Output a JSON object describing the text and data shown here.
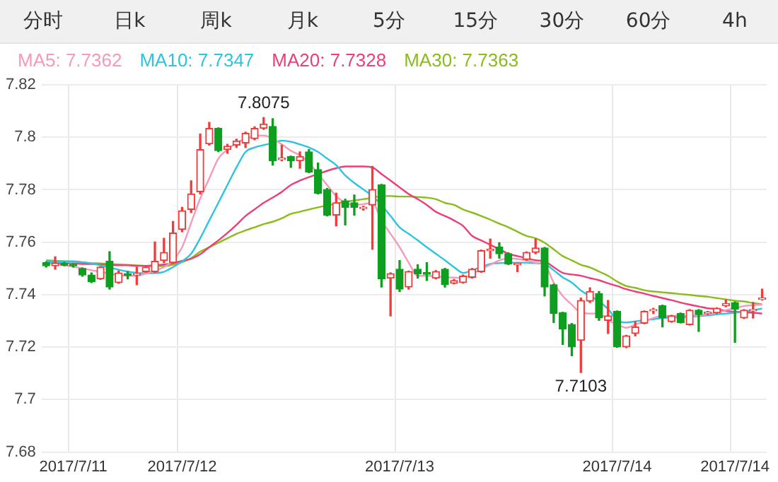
{
  "chart_data": {
    "type": "candlestick",
    "annotations": [
      "分时",
      "日k",
      "周k",
      "月k",
      "5分",
      "15分",
      "30分",
      "60分",
      "4h",
      {
        "text": "7.8075",
        "y": 7.8075
      },
      {
        "text": "7.7103",
        "y": 7.7103
      }
    ],
    "categories": [
      null,
      null,
      null,
      "2017/7/11",
      null,
      null,
      null,
      null,
      null,
      null,
      null,
      null,
      null,
      null,
      null,
      "2017/7/12",
      null,
      null,
      null,
      null,
      null,
      null,
      null,
      null,
      null,
      null,
      null,
      null,
      null,
      null,
      null,
      null,
      null,
      null,
      null,
      null,
      null,
      null,
      null,
      "2017/7/13",
      null,
      null,
      null,
      null,
      null,
      null,
      null,
      null,
      null,
      null,
      null,
      null,
      null,
      null,
      null,
      null,
      null,
      null,
      null,
      null,
      null,
      null,
      null,
      "2017/7/14",
      null,
      null,
      null,
      null,
      null,
      null,
      null,
      null,
      null,
      null,
      null,
      null,
      "2017/7/14",
      null,
      null,
      null
    ],
    "ohlc": [
      [
        7.7522,
        7.7525,
        7.7505,
        7.751
      ],
      [
        7.751,
        7.7544,
        7.7497,
        7.752
      ],
      [
        7.752,
        7.7523,
        7.751,
        7.7512
      ],
      [
        7.7515,
        7.7518,
        7.7505,
        7.751
      ],
      [
        7.75,
        7.7502,
        7.747,
        7.7475
      ],
      [
        7.7475,
        7.7483,
        7.7446,
        7.7449
      ],
      [
        7.746,
        7.7507,
        7.7458,
        7.7505
      ],
      [
        7.7527,
        7.7564,
        7.7421,
        7.7429
      ],
      [
        7.7446,
        7.749,
        7.7443,
        7.7483
      ],
      [
        7.748,
        7.7488,
        7.746,
        7.7473
      ],
      [
        7.7475,
        7.7505,
        7.7438,
        7.7478
      ],
      [
        7.7488,
        7.751,
        7.7485,
        7.7505
      ],
      [
        7.7488,
        7.7601,
        7.7485,
        7.7527
      ],
      [
        7.753,
        7.7615,
        7.7522,
        7.7561
      ],
      [
        7.7522,
        7.7679,
        7.752,
        7.7635
      ],
      [
        7.7649,
        7.7733,
        7.764,
        7.772
      ],
      [
        7.7725,
        7.7834,
        7.7713,
        7.7784
      ],
      [
        7.7792,
        7.8012,
        7.7784,
        7.7953
      ],
      [
        7.7975,
        7.8057,
        7.797,
        7.8034
      ],
      [
        7.8034,
        7.8036,
        7.7945,
        7.7949
      ],
      [
        7.7953,
        7.7973,
        7.7939,
        7.7966
      ],
      [
        7.797,
        7.7993,
        7.7961,
        7.7986
      ],
      [
        7.7978,
        7.802,
        7.7961,
        7.8015
      ],
      [
        7.7995,
        7.804,
        7.799,
        7.8034
      ],
      [
        7.8034,
        7.8075,
        7.803,
        7.8051
      ],
      [
        7.8041,
        7.8071,
        7.7894,
        7.791
      ],
      [
        7.7915,
        7.797,
        7.791,
        7.7918
      ],
      [
        7.7927,
        7.7928,
        7.7885,
        7.791
      ],
      [
        7.791,
        7.7944,
        7.7882,
        7.7927
      ],
      [
        7.7944,
        7.7953,
        7.7865,
        7.7868
      ],
      [
        7.7877,
        7.7902,
        7.7784,
        7.7787
      ],
      [
        7.7801,
        7.7805,
        7.77,
        7.7703
      ],
      [
        7.7703,
        7.7787,
        7.7662,
        7.775
      ],
      [
        7.7758,
        7.7764,
        7.7666,
        7.7733
      ],
      [
        7.775,
        7.778,
        7.7703,
        7.7733
      ],
      [
        7.7728,
        7.7737,
        7.7722,
        7.7733
      ],
      [
        7.7742,
        7.7889,
        7.7573,
        7.7801
      ],
      [
        7.7818,
        7.782,
        7.7429,
        7.746
      ],
      [
        7.7463,
        7.7483,
        7.7319,
        7.748
      ],
      [
        7.7497,
        7.753,
        7.7412,
        7.7421
      ],
      [
        7.7429,
        7.749,
        7.7421,
        7.7488
      ],
      [
        7.7497,
        7.7514,
        7.7463,
        7.748
      ],
      [
        7.7484,
        7.7522,
        7.7454,
        7.7478
      ],
      [
        7.7463,
        7.7492,
        7.746,
        7.7488
      ],
      [
        7.7497,
        7.75,
        7.7429,
        7.7438
      ],
      [
        7.7443,
        7.7458,
        7.7441,
        7.7454
      ],
      [
        7.7446,
        7.7475,
        7.7444,
        7.7471
      ],
      [
        7.7466,
        7.75,
        7.7463,
        7.7497
      ],
      [
        7.7488,
        7.757,
        7.7485,
        7.7568
      ],
      [
        7.7568,
        7.7612,
        7.7539,
        7.7571
      ],
      [
        7.7581,
        7.7598,
        7.7539,
        7.7556
      ],
      [
        7.7556,
        7.756,
        7.7515,
        7.7517
      ],
      [
        7.7514,
        7.752,
        7.7488,
        7.7517
      ],
      [
        7.7534,
        7.7563,
        7.7531,
        7.7561
      ],
      [
        7.7561,
        7.7612,
        7.7556,
        7.7578
      ],
      [
        7.7578,
        7.758,
        7.7395,
        7.7429
      ],
      [
        7.7438,
        7.744,
        7.7294,
        7.7328
      ],
      [
        7.7331,
        7.7333,
        7.721,
        7.7269
      ],
      [
        7.7286,
        7.729,
        7.7167,
        7.7201
      ],
      [
        7.7226,
        7.7387,
        7.7103,
        7.7378
      ],
      [
        7.7375,
        7.7426,
        7.737,
        7.7412
      ],
      [
        7.7404,
        7.7412,
        7.7302,
        7.7311
      ],
      [
        7.7302,
        7.7378,
        7.7252,
        7.7319
      ],
      [
        7.7336,
        7.7338,
        7.7199,
        7.7201
      ],
      [
        7.7201,
        7.7245,
        7.7198,
        7.7243
      ],
      [
        7.7252,
        7.7297,
        7.7243,
        7.7277
      ],
      [
        7.7291,
        7.7338,
        7.7289,
        7.7336
      ],
      [
        7.7338,
        7.7348,
        7.7328,
        7.734
      ],
      [
        7.7358,
        7.736,
        7.7277,
        7.7311
      ],
      [
        7.7297,
        7.7321,
        7.7295,
        7.7319
      ],
      [
        7.7328,
        7.733,
        7.7292,
        7.7294
      ],
      [
        7.7286,
        7.7343,
        7.7284,
        7.7341
      ],
      [
        7.7341,
        7.7343,
        7.726,
        7.7324
      ],
      [
        7.7328,
        7.7336,
        7.7324,
        7.733
      ],
      [
        7.7331,
        7.735,
        7.7329,
        7.7348
      ],
      [
        7.7358,
        7.738,
        7.7354,
        7.7366
      ],
      [
        7.737,
        7.7372,
        7.7218,
        7.7345
      ],
      [
        7.7311,
        7.7343,
        7.7309,
        7.7341
      ],
      [
        7.7338,
        7.737,
        7.7311,
        7.7341
      ],
      [
        7.7382,
        7.7421,
        7.738,
        7.7387
      ]
    ],
    "colors": [
      "#0e9e20",
      "#f23b3b",
      "#0e9e20",
      "#0e9e20",
      "#0e9e20",
      "#0e9e20",
      "#f23b3b",
      "#0e9e20",
      "#f23b3b",
      "#0e9e20",
      "#f23b3b",
      "#f23b3b",
      "#f23b3b",
      "#f23b3b",
      "#f23b3b",
      "#f23b3b",
      "#f23b3b",
      "#f23b3b",
      "#f23b3b",
      "#0e9e20",
      "#f23b3b",
      "#f23b3b",
      "#f23b3b",
      "#f23b3b",
      "#f23b3b",
      "#0e9e20",
      "#f23b3b",
      "#0e9e20",
      "#f23b3b",
      "#0e9e20",
      "#0e9e20",
      "#0e9e20",
      "#f23b3b",
      "#0e9e20",
      "#0e9e20",
      "#f23b3b",
      "#f23b3b",
      "#0e9e20",
      "#f23b3b",
      "#0e9e20",
      "#f23b3b",
      "#0e9e20",
      "#0e9e20",
      "#f23b3b",
      "#0e9e20",
      "#f23b3b",
      "#f23b3b",
      "#f23b3b",
      "#f23b3b",
      "#f23b3b",
      "#0e9e20",
      "#0e9e20",
      "#f23b3b",
      "#f23b3b",
      "#f23b3b",
      "#0e9e20",
      "#0e9e20",
      "#0e9e20",
      "#0e9e20",
      "#f23b3b",
      "#f23b3b",
      "#0e9e20",
      "#f23b3b",
      "#0e9e20",
      "#f23b3b",
      "#f23b3b",
      "#f23b3b",
      "#f23b3b",
      "#0e9e20",
      "#f23b3b",
      "#0e9e20",
      "#f23b3b",
      "#0e9e20",
      "#f23b3b",
      "#f23b3b",
      "#f23b3b",
      "#0e9e20",
      "#f23b3b",
      "#f23b3b",
      "#f23b3b"
    ],
    "series": [
      {
        "name": "MA5: 7.7362",
        "type": "line",
        "color": "#f59ab8",
        "values": [
          7.7522,
          7.7517,
          7.7512,
          7.7507,
          7.75,
          7.7493,
          7.7487,
          7.748,
          7.7475,
          7.7472,
          7.7472,
          7.748,
          7.7493,
          7.7505,
          7.7531,
          7.7581,
          7.7674,
          7.7767,
          7.7843,
          7.7919,
          7.7953,
          7.7978,
          7.7995,
          7.8004,
          7.8007,
          7.7995,
          7.7973,
          7.7949,
          7.7931,
          7.7902,
          7.786,
          7.7818,
          7.7776,
          7.775,
          7.7742,
          7.7745,
          7.775,
          7.7683,
          7.7632,
          7.7581,
          7.7522,
          7.7472,
          7.7472,
          7.747,
          7.7466,
          7.7465,
          7.7463,
          7.748,
          7.7497,
          7.7514,
          7.7531,
          7.7539,
          7.7536,
          7.7531,
          7.7522,
          7.7514,
          7.7446,
          7.7395,
          7.7362,
          7.7331,
          7.7328,
          7.7328,
          7.7303,
          7.7286,
          7.7274,
          7.7286,
          7.7298,
          7.7311,
          7.7319,
          7.7319,
          7.7319,
          7.7319,
          7.7321,
          7.7325,
          7.7331,
          7.7341,
          7.7348,
          7.7357,
          7.736,
          7.7362
        ]
      },
      {
        "name": "MA10: 7.7347",
        "type": "line",
        "color": "#2ec4e0",
        "values": [
          7.7527,
          7.7527,
          7.7527,
          7.7527,
          7.7524,
          7.7519,
          7.7512,
          7.7504,
          7.7495,
          7.7488,
          7.7483,
          7.7482,
          7.7482,
          7.7487,
          7.7505,
          7.7527,
          7.7556,
          7.7615,
          7.7683,
          7.775,
          7.7818,
          7.7885,
          7.7944,
          7.7961,
          7.797,
          7.7978,
          7.7987,
          7.7983,
          7.7973,
          7.7961,
          7.7944,
          7.7919,
          7.7894,
          7.7855,
          7.7826,
          7.7801,
          7.7776,
          7.7742,
          7.77,
          7.7657,
          7.7632,
          7.7607,
          7.7581,
          7.7556,
          7.7531,
          7.7505,
          7.7483,
          7.7493,
          7.7505,
          7.7517,
          7.752,
          7.7522,
          7.7522,
          7.7522,
          7.752,
          7.7517,
          7.7493,
          7.7466,
          7.7446,
          7.7416,
          7.7395,
          7.7375,
          7.7345,
          7.7303,
          7.7294,
          7.7298,
          7.7303,
          7.7306,
          7.7311,
          7.7313,
          7.7314,
          7.7316,
          7.7318,
          7.7321,
          7.7325,
          7.7328,
          7.7331,
          7.7336,
          7.7341,
          7.7347
        ]
      },
      {
        "name": "MA20: 7.7328",
        "type": "line",
        "color": "#ec3f78",
        "values": [
          7.7522,
          7.752,
          7.752,
          7.7519,
          7.7517,
          7.7517,
          7.7515,
          7.7514,
          7.7512,
          7.7512,
          7.751,
          7.751,
          7.7512,
          7.7515,
          7.752,
          7.7529,
          7.7537,
          7.7554,
          7.7581,
          7.7607,
          7.7635,
          7.7666,
          7.77,
          7.7725,
          7.775,
          7.777,
          7.7792,
          7.7818,
          7.7835,
          7.7848,
          7.786,
          7.7872,
          7.7882,
          7.7889,
          7.7889,
          7.7889,
          7.7885,
          7.786,
          7.7835,
          7.7809,
          7.7784,
          7.7764,
          7.7742,
          7.7716,
          7.77,
          7.7683,
          7.7662,
          7.7624,
          7.7607,
          7.759,
          7.7573,
          7.7556,
          7.7547,
          7.7539,
          7.7531,
          7.7527,
          7.7505,
          7.7483,
          7.7477,
          7.7472,
          7.7463,
          7.7455,
          7.7443,
          7.7433,
          7.7421,
          7.7412,
          7.7404,
          7.7395,
          7.7387,
          7.7379,
          7.737,
          7.7362,
          7.7355,
          7.7348,
          7.7345,
          7.7338,
          7.7335,
          7.7333,
          7.7331,
          7.7328
        ]
      },
      {
        "name": "MA30: 7.7363",
        "type": "line",
        "color": "#8cbb1c",
        "values": [
          7.7531,
          7.7529,
          7.7527,
          7.7526,
          7.7522,
          7.752,
          7.7519,
          7.7517,
          7.7515,
          7.7514,
          7.7512,
          7.751,
          7.7509,
          7.7509,
          7.7514,
          7.7524,
          7.7539,
          7.7564,
          7.7581,
          7.7598,
          7.7615,
          7.7632,
          7.7645,
          7.7657,
          7.7669,
          7.7678,
          7.7691,
          7.7708,
          7.7716,
          7.7725,
          7.7733,
          7.774,
          7.7747,
          7.7754,
          7.7759,
          7.7764,
          7.7769,
          7.7776,
          7.7776,
          7.7774,
          7.7774,
          7.7772,
          7.777,
          7.7764,
          7.775,
          7.7742,
          7.7725,
          7.7713,
          7.77,
          7.7686,
          7.7671,
          7.7657,
          7.764,
          7.7624,
          7.7615,
          7.7598,
          7.7573,
          7.7547,
          7.7531,
          7.7514,
          7.7504,
          7.7488,
          7.7472,
          7.745,
          7.7433,
          7.7426,
          7.7417,
          7.7412,
          7.7409,
          7.7406,
          7.7402,
          7.7399,
          7.7395,
          7.7392,
          7.7387,
          7.7382,
          7.7377,
          7.7374,
          7.7368,
          7.7363
        ]
      }
    ],
    "ylim": [
      7.68,
      7.82
    ],
    "yticks": [
      7.68,
      7.7,
      7.72,
      7.74,
      7.76,
      7.78,
      7.8,
      7.82
    ],
    "grid": true,
    "legend": "top left"
  }
}
